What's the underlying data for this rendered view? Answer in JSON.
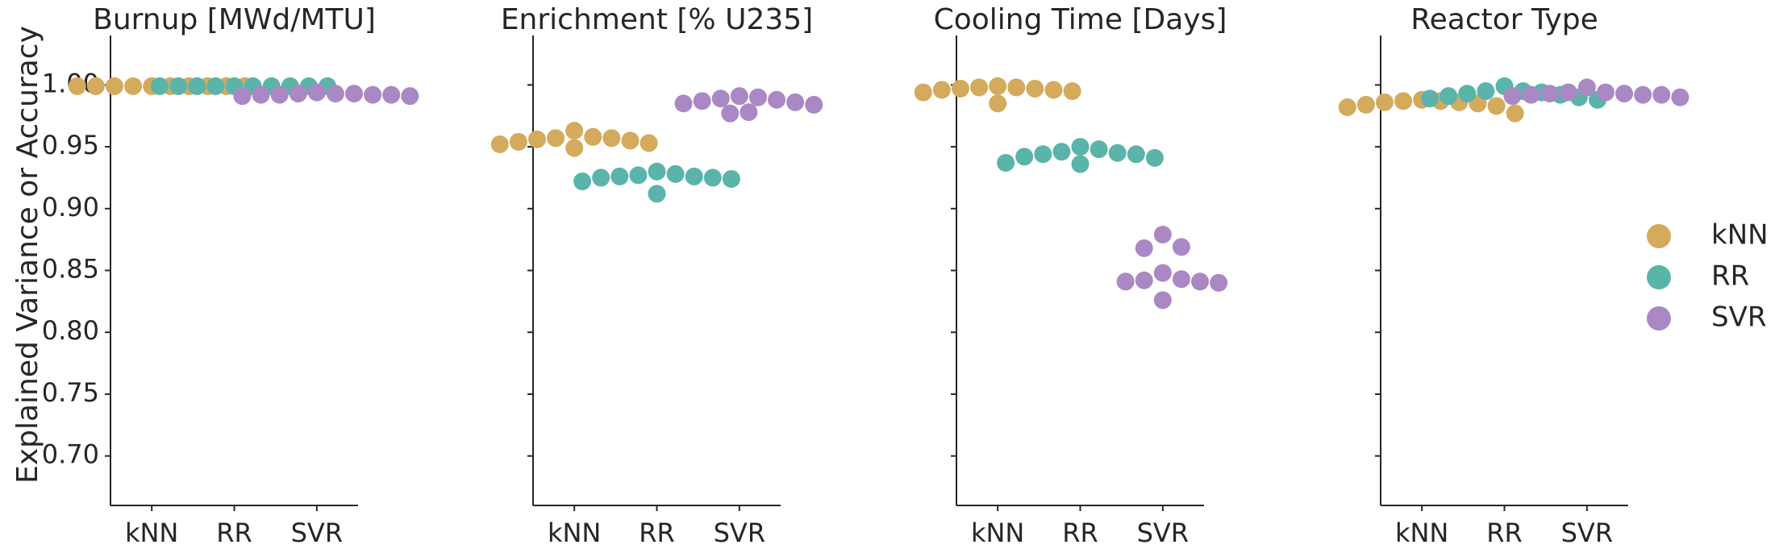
{
  "chart_data": {
    "type": "scatter",
    "style": "swarm",
    "ylabel": "Explained Variance or Accuracy",
    "ylim": [
      0.66,
      1.04
    ],
    "yticks": [
      0.7,
      0.75,
      0.8,
      0.85,
      0.9,
      0.95,
      1.0
    ],
    "categories": [
      "kNN",
      "RR",
      "SVR"
    ],
    "colors": {
      "kNN": "#d4aa5c",
      "RR": "#5ab4aa",
      "SVR": "#aa88c4"
    },
    "legend": {
      "placement": "right",
      "entries": [
        "kNN",
        "RR",
        "SVR"
      ]
    },
    "panels": [
      {
        "title": "Burnup [MWd/MTU]",
        "series": [
          {
            "name": "kNN",
            "values": [
              0.999,
              0.999,
              0.999,
              0.999,
              0.999,
              0.999,
              0.999,
              0.999,
              0.999,
              0.999
            ]
          },
          {
            "name": "RR",
            "values": [
              0.999,
              0.999,
              0.999,
              0.999,
              0.999,
              0.999,
              0.999,
              0.999,
              0.999,
              0.999
            ]
          },
          {
            "name": "SVR",
            "values": [
              0.993,
              0.992,
              0.991,
              0.994,
              0.992,
              0.993,
              0.991,
              0.992,
              0.993,
              0.992
            ]
          }
        ]
      },
      {
        "title": "Enrichment [% U235]",
        "series": [
          {
            "name": "kNN",
            "values": [
              0.958,
              0.952,
              0.955,
              0.963,
              0.949,
              0.957,
              0.954,
              0.956,
              0.953,
              0.957
            ]
          },
          {
            "name": "RR",
            "values": [
              0.926,
              0.925,
              0.928,
              0.93,
              0.912,
              0.927,
              0.924,
              0.926,
              0.922,
              0.925
            ]
          },
          {
            "name": "SVR",
            "values": [
              0.986,
              0.99,
              0.978,
              0.988,
              0.985,
              0.977,
              0.991,
              0.987,
              0.984,
              0.989
            ]
          }
        ]
      },
      {
        "title": "Cooling Time [Days]",
        "series": [
          {
            "name": "kNN",
            "values": [
              0.998,
              0.997,
              0.995,
              0.985,
              0.996,
              0.994,
              0.997,
              0.998,
              0.996,
              0.999
            ]
          },
          {
            "name": "RR",
            "values": [
              0.946,
              0.95,
              0.937,
              0.944,
              0.941,
              0.948,
              0.936,
              0.945,
              0.942,
              0.944
            ]
          },
          {
            "name": "SVR",
            "values": [
              0.842,
              0.869,
              0.879,
              0.848,
              0.826,
              0.84,
              0.841,
              0.868,
              0.843,
              0.841
            ]
          }
        ]
      },
      {
        "title": "Reactor Type",
        "series": [
          {
            "name": "kNN",
            "values": [
              0.987,
              0.986,
              0.982,
              0.977,
              0.985,
              0.983,
              0.988,
              0.984,
              0.986,
              0.987
            ]
          },
          {
            "name": "RR",
            "values": [
              0.995,
              0.992,
              0.988,
              0.999,
              0.989,
              0.991,
              0.994,
              0.99,
              0.995,
              0.993
            ]
          },
          {
            "name": "SVR",
            "values": [
              0.994,
              0.993,
              0.992,
              0.998,
              0.99,
              0.992,
              0.991,
              0.993,
              0.992,
              0.994
            ]
          }
        ]
      }
    ]
  }
}
